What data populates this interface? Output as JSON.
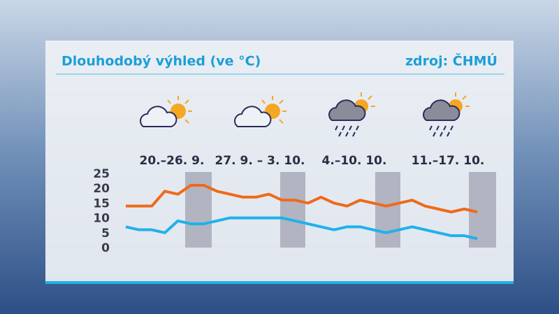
{
  "chart_data": {
    "type": "line",
    "title": "Dlouhodobý výhled (ve °C)",
    "source": "zdroj: ČHMÚ",
    "annotations": [
      "20.–26. 9.",
      "27. 9. – 3. 10.",
      "4.–10. 10.",
      "11.–17. 10."
    ],
    "categories": [
      null,
      null,
      null,
      null,
      null,
      null,
      null,
      null,
      null,
      null,
      null,
      null,
      null,
      null,
      null,
      null,
      null,
      null,
      null,
      null,
      null,
      null,
      null,
      null,
      null,
      null,
      null,
      null
    ],
    "series": [
      {
        "color": "#ee6a1a",
        "values": [
          14,
          14,
          14,
          19,
          18,
          21,
          21,
          19,
          18,
          17,
          17,
          18,
          16,
          16,
          15,
          17,
          15,
          14,
          16,
          15,
          14,
          15,
          16,
          14,
          13,
          12,
          13,
          12
        ]
      },
      {
        "color": "#1fb2ea",
        "values": [
          7,
          6,
          6,
          5,
          9,
          8,
          8,
          9,
          10,
          10,
          10,
          10,
          10,
          9,
          8,
          7,
          6,
          7,
          7,
          6,
          5,
          6,
          7,
          6,
          5,
          4,
          4,
          3
        ]
      }
    ],
    "ylim": [
      0,
      25
    ],
    "yticks": [
      0,
      5,
      10,
      15,
      20,
      25
    ]
  }
}
